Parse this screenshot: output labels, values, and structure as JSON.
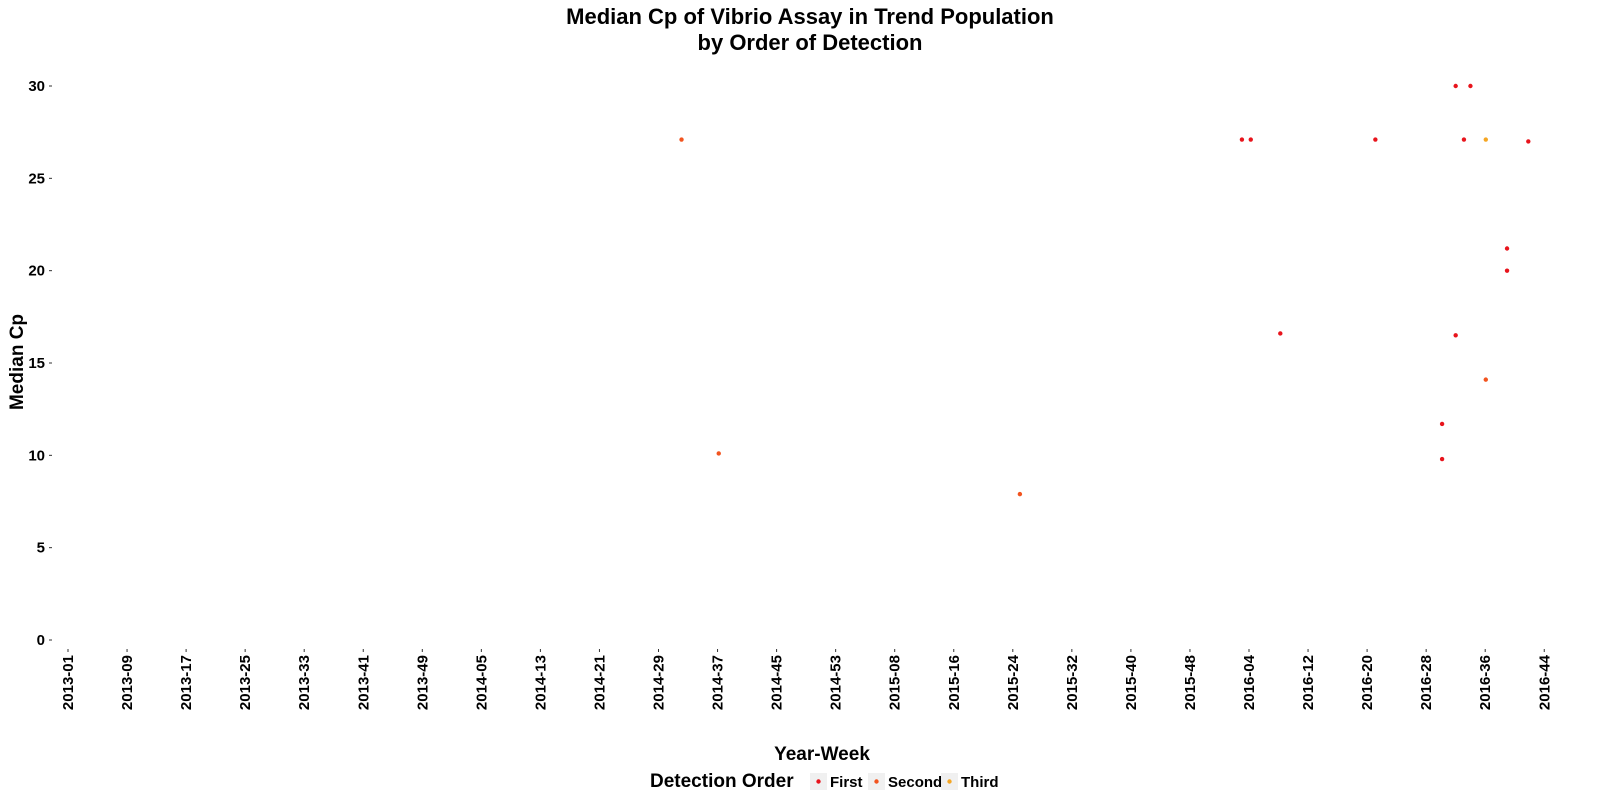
{
  "chart_data": {
    "type": "scatter",
    "title": [
      "Median Cp of Vibrio Assay in Trend Population",
      "by Order of Detection"
    ],
    "xlabel": "Year-Week",
    "ylabel": "Median Cp",
    "x_categories": [
      "2013-01",
      "2013-09",
      "2013-17",
      "2013-25",
      "2013-33",
      "2013-41",
      "2013-49",
      "2014-05",
      "2014-13",
      "2014-21",
      "2014-29",
      "2014-37",
      "2014-45",
      "2014-53",
      "2015-08",
      "2015-16",
      "2015-24",
      "2015-32",
      "2015-40",
      "2015-48",
      "2016-04",
      "2016-12",
      "2016-20",
      "2016-28",
      "2016-36",
      "2016-44"
    ],
    "y_ticks": [
      0,
      5,
      10,
      15,
      20,
      25,
      30
    ],
    "ylim": [
      -1.5,
      31.5
    ],
    "grid": false,
    "legend": {
      "title": "Detection Order",
      "position": "bottom",
      "entries": [
        {
          "name": "First",
          "color": "#e8141c"
        },
        {
          "name": "Second",
          "color": "#f2541f"
        },
        {
          "name": "Third",
          "color": "#f5a623"
        }
      ]
    },
    "x_axis_note": "x values expressed as fractional category index (0 = 2013-01, 1 = 2013-09, ... each category = 8 weeks)",
    "series": [
      {
        "name": "First",
        "color": "#e8141c",
        "points": [
          {
            "x": 19.88,
            "y": 27.1
          },
          {
            "x": 20.03,
            "y": 27.1
          },
          {
            "x": 20.53,
            "y": 16.6
          },
          {
            "x": 22.14,
            "y": 27.1
          },
          {
            "x": 23.27,
            "y": 11.7
          },
          {
            "x": 23.27,
            "y": 9.8
          },
          {
            "x": 23.5,
            "y": 30.0
          },
          {
            "x": 23.5,
            "y": 16.5
          },
          {
            "x": 23.64,
            "y": 27.1
          },
          {
            "x": 23.75,
            "y": 30.0
          },
          {
            "x": 24.37,
            "y": 21.2
          },
          {
            "x": 24.37,
            "y": 20.0
          },
          {
            "x": 24.73,
            "y": 27.0
          }
        ]
      },
      {
        "name": "Second",
        "color": "#f2541f",
        "points": [
          {
            "x": 10.39,
            "y": 27.1
          },
          {
            "x": 11.02,
            "y": 10.1
          },
          {
            "x": 16.12,
            "y": 7.9
          },
          {
            "x": 24.01,
            "y": 14.1
          }
        ]
      },
      {
        "name": "Third",
        "color": "#f5a623",
        "points": [
          {
            "x": 24.01,
            "y": 27.1
          }
        ]
      }
    ]
  }
}
